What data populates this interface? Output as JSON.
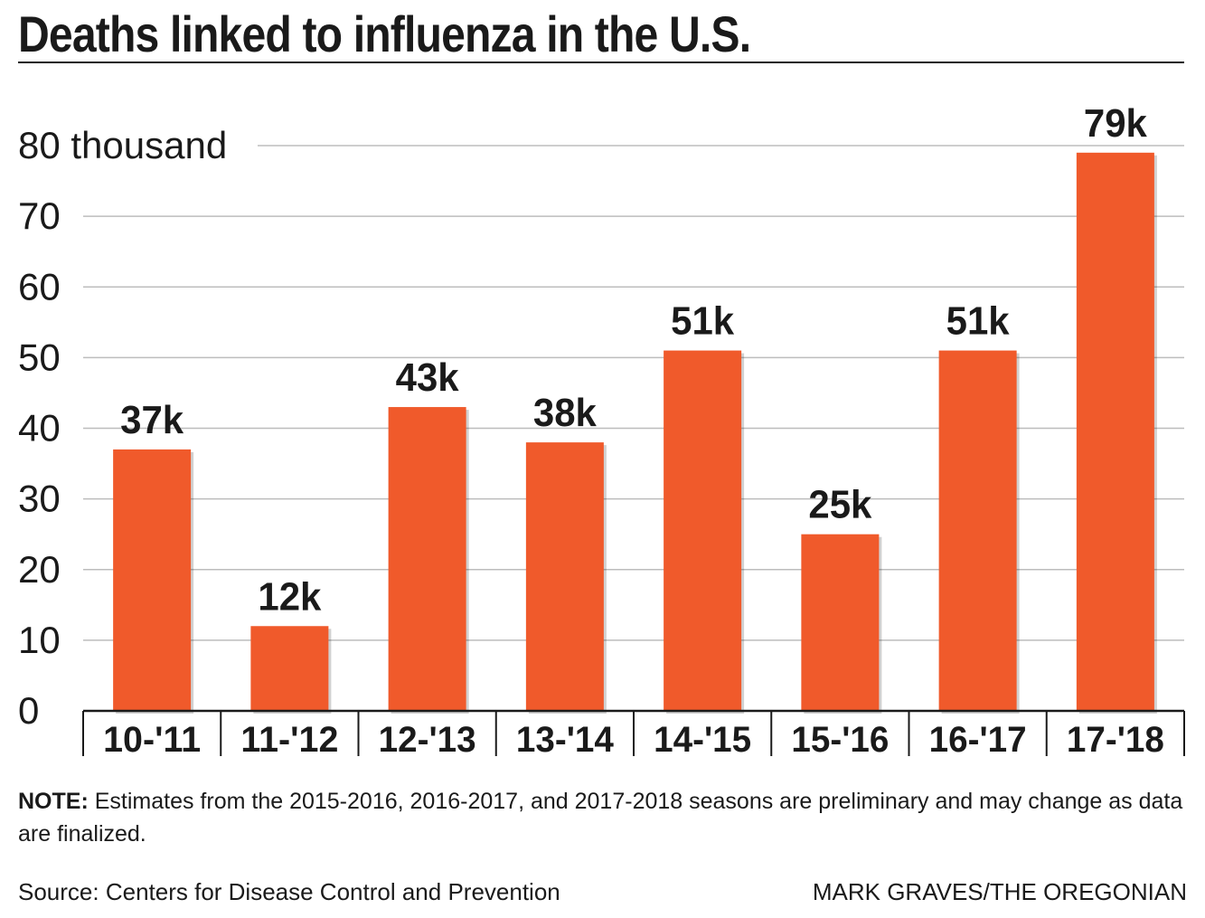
{
  "header": {
    "title": "Deaths linked to influenza in the U.S."
  },
  "chart_data": {
    "type": "bar",
    "title": "Deaths linked to influenza in the U.S.",
    "xlabel": "",
    "ylabel": "",
    "unit_label": "thousand",
    "categories": [
      "10-'11",
      "11-'12",
      "12-'13",
      "13-'14",
      "14-'15",
      "15-'16",
      "16-'17",
      "17-'18"
    ],
    "values": [
      37,
      12,
      43,
      38,
      51,
      25,
      51,
      79
    ],
    "data_labels": [
      "37k",
      "12k",
      "43k",
      "38k",
      "51k",
      "25k",
      "51k",
      "79k"
    ],
    "y_ticks": [
      0,
      10,
      20,
      30,
      40,
      50,
      60,
      70,
      80
    ],
    "y_tick_labels": [
      "0",
      "10",
      "20",
      "30",
      "40",
      "50",
      "60",
      "70",
      "80 thousand"
    ],
    "ylim": [
      0,
      80
    ],
    "grid": true,
    "legend": "none",
    "bar_color": "#f05a2b"
  },
  "footer": {
    "note_label": "NOTE:",
    "note_text": " Estimates from the 2015-2016, 2016-2017, and 2017-2018 seasons are preliminary and may change as data are finalized.",
    "source": "Source: Centers for Disease Control and Prevention",
    "credit": "MARK GRAVES/THE OREGONIAN"
  }
}
